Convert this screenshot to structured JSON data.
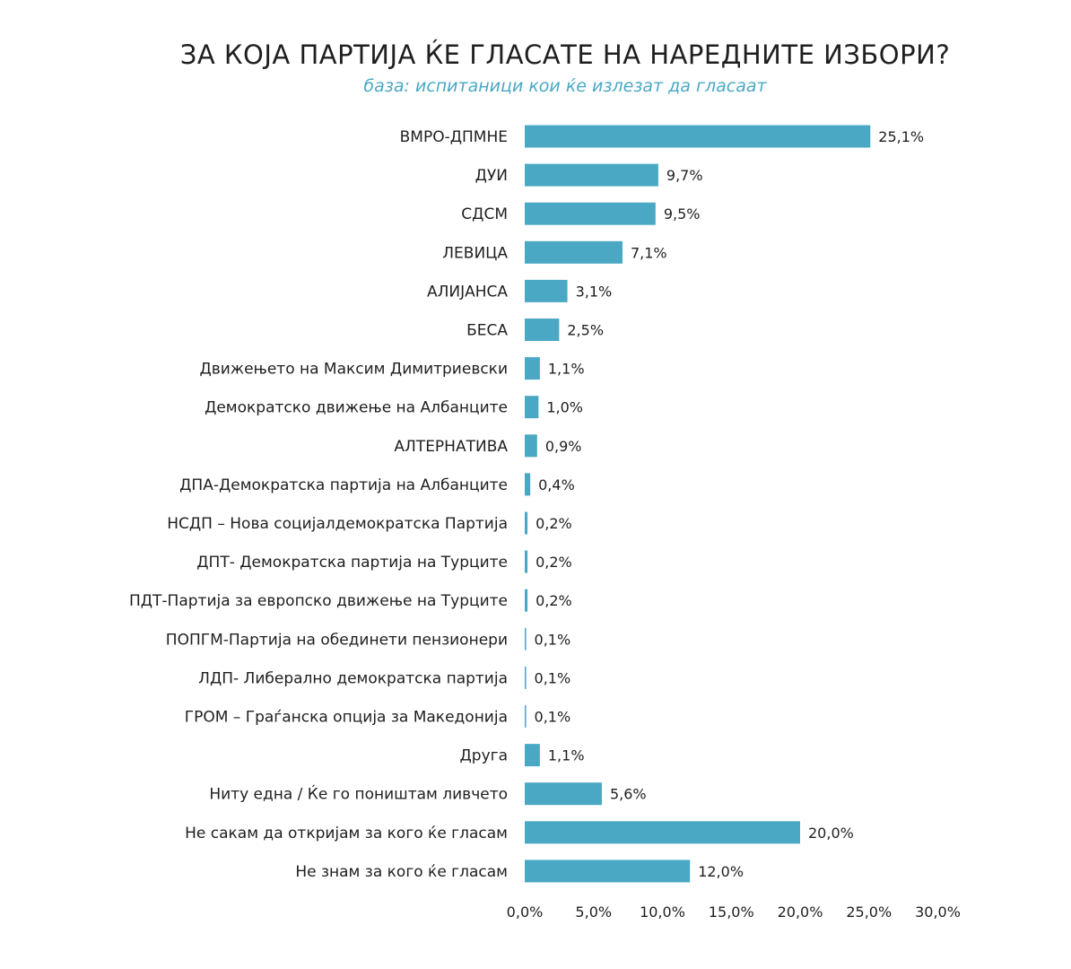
{
  "chart_data": {
    "type": "bar",
    "orientation": "horizontal",
    "title": "ЗА КОЈА ПАРТИЈА ЌЕ ГЛАСАТЕ НА НАРЕДНИТЕ ИЗБОРИ?",
    "subtitle": "база: испитаници кои ќе излезат да гласаат",
    "categories": [
      "ВМРО-ДПМНЕ",
      "ДУИ",
      "СДСМ",
      "ЛЕВИЦА",
      "АЛИЈАНСА",
      "БЕСА",
      "Движењето на Максим Димитриевски",
      "Демократско движење на Албанците",
      "АЛТЕРНАТИВА",
      "ДПА-Демократска партија на Албанците",
      "НСДП – Нова социјалдемократска Партија",
      "ДПТ- Демократска партија на Турците",
      "ПДТ-Партија за европско движење на Турците",
      "ПОПГМ-Партија на обединети пензионери",
      "ЛДП- Либерално демократска партија",
      "ГРОМ – Граѓанска опција за Македонија",
      "Друга",
      "Ниту една / Ќе го поништам ливчето",
      "Не сакам да откријам за кого ќе гласам",
      "Не знам за кого ќе гласам"
    ],
    "values": [
      25.1,
      9.7,
      9.5,
      7.1,
      3.1,
      2.5,
      1.1,
      1.0,
      0.9,
      0.4,
      0.2,
      0.2,
      0.2,
      0.1,
      0.1,
      0.1,
      1.1,
      5.6,
      20.0,
      12.0
    ],
    "value_labels": [
      "25,1%",
      "9,7%",
      "9,5%",
      "7,1%",
      "3,1%",
      "2,5%",
      "1,1%",
      "1,0%",
      "0,9%",
      "0,4%",
      "0,2%",
      "0,2%",
      "0,2%",
      "0,1%",
      "0,1%",
      "0,1%",
      "1,1%",
      "5,6%",
      "20,0%",
      "12,0%"
    ],
    "xlim": [
      0,
      30
    ],
    "x_ticks": [
      0,
      5,
      10,
      15,
      20,
      25,
      30
    ],
    "x_tick_labels": [
      "0,0%",
      "5,0%",
      "10,0%",
      "15,0%",
      "20,0%",
      "25,0%",
      "30,0%"
    ],
    "grid": false,
    "legend": "none",
    "bar_color": "#4aa8c4"
  }
}
